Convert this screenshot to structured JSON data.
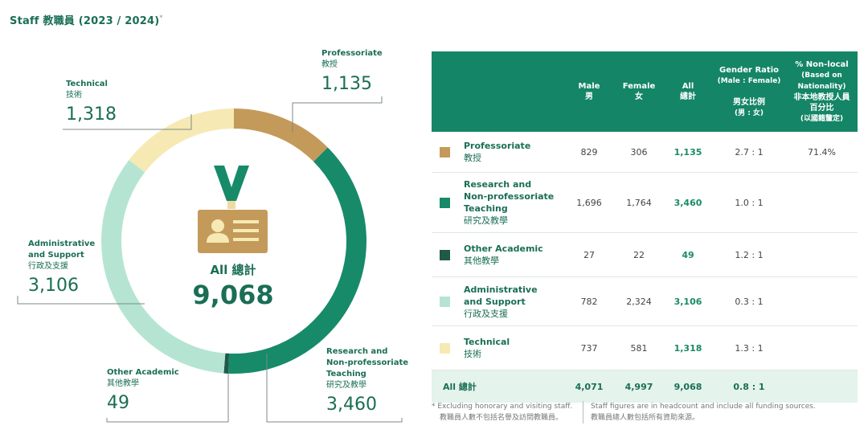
{
  "title": {
    "text": "Staff 教職員 (2023 / 2024)",
    "mark": "*"
  },
  "center": {
    "label": "All 總計",
    "value": "9,068"
  },
  "table": {
    "headers": {
      "male": [
        "Male",
        "男"
      ],
      "female": [
        "Female",
        "女"
      ],
      "all": [
        "All",
        "總計"
      ],
      "ratio": [
        "Gender Ratio",
        "(Male : Female)",
        "男女比例",
        "(男 : 女)"
      ],
      "nonlocal": [
        "% Non-local",
        "(Based on",
        "Nationality)",
        "非本地教授人員",
        "百分比",
        "(以國籍釐定)"
      ]
    },
    "total_row": {
      "label": "All 總計",
      "male": "4,071",
      "female": "4,997",
      "all": "9,068",
      "ratio": "0.8 : 1"
    }
  },
  "chart_data": {
    "type": "pie",
    "title": "Staff 教職員 (2023 / 2024)",
    "total": 9068,
    "categories": [
      {
        "key": "prof",
        "label_en": [
          "Professoriate"
        ],
        "label_zh": "教授",
        "value": 1135,
        "value_text": "1,135",
        "color": "#c49a5a",
        "male": "829",
        "female": "306",
        "ratio": "2.7 : 1",
        "nonlocal": "71.4%"
      },
      {
        "key": "rnpt",
        "label_en": [
          "Research and",
          "Non-professoriate",
          "Teaching"
        ],
        "label_zh": "研究及教學",
        "value": 3460,
        "value_text": "3,460",
        "color": "#178a6a",
        "male": "1,696",
        "female": "1,764",
        "ratio": "1.0 : 1",
        "nonlocal": ""
      },
      {
        "key": "other",
        "label_en": [
          "Other Academic"
        ],
        "label_zh": "其他教學",
        "value": 49,
        "value_text": "49",
        "color": "#1f5a48",
        "male": "27",
        "female": "22",
        "ratio": "1.2 : 1",
        "nonlocal": ""
      },
      {
        "key": "admin",
        "label_en": [
          "Administrative",
          "and Support"
        ],
        "label_zh": "行政及支援",
        "value": 3106,
        "value_text": "3,106",
        "color": "#b5e5d2",
        "male": "782",
        "female": "2,324",
        "ratio": "0.3 : 1",
        "nonlocal": ""
      },
      {
        "key": "tech",
        "label_en": [
          "Technical"
        ],
        "label_zh": "技術",
        "value": 1318,
        "value_text": "1,318",
        "color": "#f6e9b3",
        "male": "737",
        "female": "581",
        "ratio": "1.3 : 1",
        "nonlocal": ""
      }
    ]
  },
  "footnotes": {
    "left": [
      "* Excluding honorary and visiting staff.",
      "教職員人數不包括名譽及訪問教職員。"
    ],
    "right": [
      "Staff figures are in headcount and include all funding sources.",
      "教職員總人數包括所有資助來源。"
    ]
  }
}
